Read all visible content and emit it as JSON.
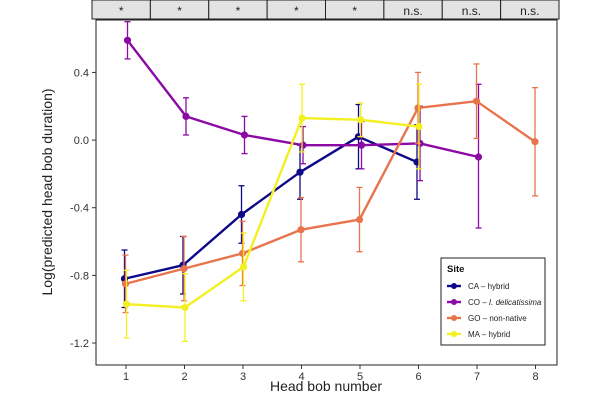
{
  "chart_data": {
    "type": "line",
    "xlabel": "Head bob number",
    "ylabel": "Log(predicted head bob duration)",
    "x": [
      1,
      2,
      3,
      4,
      5,
      6,
      7,
      8
    ],
    "xlim": [
      0.2,
      8.8
    ],
    "ylim": [
      -1.33,
      0.71
    ],
    "yticks": [
      -1.2,
      -0.8,
      -0.4,
      0.0,
      0.4
    ],
    "ytick_labels": [
      "-1.2",
      "-0.8",
      "-0.4",
      "0.0",
      "0.4"
    ],
    "xtick_labels": [
      "1",
      "2",
      "3",
      "4",
      "5",
      "6",
      "7",
      "8"
    ],
    "significance": [
      "*",
      "*",
      "*",
      "*",
      "*",
      "n.s.",
      "n.s.",
      "n.s."
    ],
    "legend": {
      "title": "Site",
      "position": "bottom-right"
    },
    "grid": false,
    "series": [
      {
        "name": "CA – hybrid",
        "italic_part": "",
        "color": "#0d0887",
        "points": [
          {
            "x": 1,
            "y": -0.82,
            "lo": -0.99,
            "hi": -0.65
          },
          {
            "x": 2,
            "y": -0.74,
            "lo": -0.91,
            "hi": -0.57
          },
          {
            "x": 3,
            "y": -0.44,
            "lo": -0.61,
            "hi": -0.27
          },
          {
            "x": 4,
            "y": -0.19,
            "lo": -0.35,
            "hi": -0.03
          },
          {
            "x": 5,
            "y": 0.02,
            "lo": -0.17,
            "hi": 0.21
          },
          {
            "x": 6,
            "y": -0.13,
            "lo": -0.35,
            "hi": 0.09
          }
        ]
      },
      {
        "name": "CO – ",
        "italic_part": "I. delicatissima",
        "color": "#8b0aa5",
        "points": [
          {
            "x": 1,
            "y": 0.59,
            "lo": 0.48,
            "hi": 0.7
          },
          {
            "x": 2,
            "y": 0.14,
            "lo": 0.03,
            "hi": 0.25
          },
          {
            "x": 3,
            "y": 0.03,
            "lo": -0.08,
            "hi": 0.14
          },
          {
            "x": 4,
            "y": -0.03,
            "lo": -0.14,
            "hi": 0.08
          },
          {
            "x": 5,
            "y": -0.03,
            "lo": -0.17,
            "hi": 0.11
          },
          {
            "x": 6,
            "y": -0.02,
            "lo": -0.24,
            "hi": 0.2
          },
          {
            "x": 7,
            "y": -0.1,
            "lo": -0.52,
            "hi": 0.33
          }
        ]
      },
      {
        "name": "GO – non-native",
        "italic_part": "",
        "color": "#e8744d",
        "points": [
          {
            "x": 1,
            "y": -0.85,
            "lo": -1.02,
            "hi": -0.68
          },
          {
            "x": 2,
            "y": -0.76,
            "lo": -0.95,
            "hi": -0.57
          },
          {
            "x": 3,
            "y": -0.67,
            "lo": -0.86,
            "hi": -0.48
          },
          {
            "x": 4,
            "y": -0.53,
            "lo": -0.72,
            "hi": -0.34
          },
          {
            "x": 5,
            "y": -0.47,
            "lo": -0.66,
            "hi": -0.28
          },
          {
            "x": 6,
            "y": 0.19,
            "lo": -0.02,
            "hi": 0.4
          },
          {
            "x": 7,
            "y": 0.23,
            "lo": 0.01,
            "hi": 0.45
          },
          {
            "x": 8,
            "y": -0.01,
            "lo": -0.33,
            "hi": 0.31
          }
        ]
      },
      {
        "name": "MA – hybrid",
        "italic_part": "",
        "color": "#f3f022",
        "points": [
          {
            "x": 1,
            "y": -0.97,
            "lo": -1.17,
            "hi": -0.77
          },
          {
            "x": 2,
            "y": -0.99,
            "lo": -1.19,
            "hi": -0.79
          },
          {
            "x": 3,
            "y": -0.75,
            "lo": -0.95,
            "hi": -0.55
          },
          {
            "x": 4,
            "y": 0.13,
            "lo": -0.07,
            "hi": 0.33
          },
          {
            "x": 5,
            "y": 0.12,
            "lo": 0.02,
            "hi": 0.22
          },
          {
            "x": 6,
            "y": 0.08,
            "lo": -0.17,
            "hi": 0.33
          }
        ]
      }
    ]
  }
}
